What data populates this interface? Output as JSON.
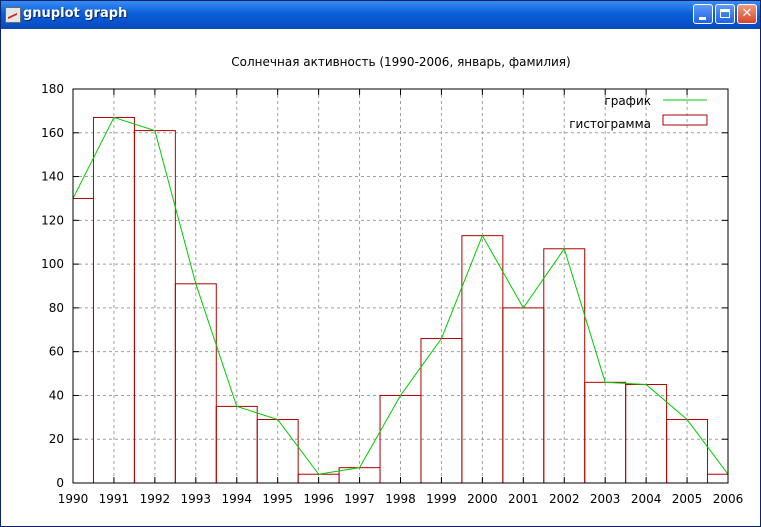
{
  "window": {
    "title": "gnuplot graph",
    "icon": "gnuplot-app-icon",
    "controls": {
      "minimize": "minimize-icon",
      "maximize": "maximize-icon",
      "close": "✕"
    }
  },
  "colors": {
    "line": "#00cc00",
    "bars": "#b00000",
    "grid": "#a0a0a0",
    "titlebar": "#0a5fd8"
  },
  "chart_data": {
    "type": "bar",
    "title": "Солнечная активность (1990-2006,  январь, фамилия)",
    "xlabel": "",
    "ylabel": "",
    "xlim": [
      1990,
      2006
    ],
    "ylim": [
      0,
      180
    ],
    "xticks": [
      "1990",
      "1991",
      "1992",
      "1993",
      "1994",
      "1995",
      "1996",
      "1997",
      "1998",
      "1999",
      "2000",
      "2001",
      "2002",
      "2003",
      "2004",
      "2005",
      "2006"
    ],
    "yticks": [
      "0",
      "20",
      "40",
      "60",
      "80",
      "100",
      "120",
      "140",
      "160",
      "180"
    ],
    "grid": true,
    "legend_position": "top-right",
    "series": [
      {
        "name": "график",
        "type": "line",
        "x": [
          1990,
          1991,
          1992,
          1993,
          1994,
          1995,
          1996,
          1997,
          1998,
          1999,
          2000,
          2001,
          2002,
          2003,
          2004,
          2005,
          2006
        ],
        "values": [
          130,
          167,
          161,
          91,
          35,
          29,
          4,
          7,
          40,
          66,
          113,
          80,
          107,
          46,
          45,
          29,
          4
        ]
      },
      {
        "name": "гистограмма",
        "type": "histogram",
        "x": [
          1990,
          1991,
          1992,
          1993,
          1994,
          1995,
          1996,
          1997,
          1998,
          1999,
          2000,
          2001,
          2002,
          2003,
          2004,
          2005,
          2006
        ],
        "values": [
          130,
          167,
          161,
          91,
          35,
          29,
          4,
          7,
          40,
          66,
          113,
          80,
          107,
          46,
          45,
          29,
          4
        ]
      }
    ]
  }
}
